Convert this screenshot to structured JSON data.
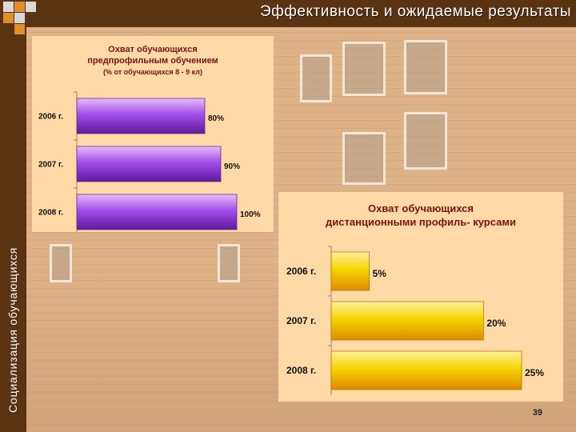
{
  "slide": {
    "title": "Эффективность и ожидаемые результаты",
    "side_label": "Социализация обучающихся",
    "page_number": "39"
  },
  "colors": {
    "frame": "#5a3312",
    "chart1_bar": "#9a40e0",
    "chart2_bar": "#f2d200",
    "panel_bg": "#ffd9a6"
  },
  "chart_data": [
    {
      "type": "bar",
      "orientation": "horizontal",
      "title_lines": [
        "Охват обучающихся",
        "предпрофильным обучением",
        "(% от обучающихся 8 - 9 кл)"
      ],
      "categories": [
        "2006 г.",
        "2007 г.",
        "2008 г."
      ],
      "values": [
        80,
        90,
        100
      ],
      "value_labels": [
        "80%",
        "90%",
        "100%"
      ],
      "xlim": [
        0,
        100
      ]
    },
    {
      "type": "bar",
      "orientation": "horizontal",
      "title_lines": [
        "Охват обучающихся",
        "дистанционными профиль- курсами"
      ],
      "categories": [
        "2006 г.",
        "2007 г.",
        "2008 г."
      ],
      "values": [
        5,
        20,
        25
      ],
      "value_labels": [
        "5%",
        "20%",
        "25%"
      ],
      "xlim": [
        0,
        25
      ]
    }
  ]
}
